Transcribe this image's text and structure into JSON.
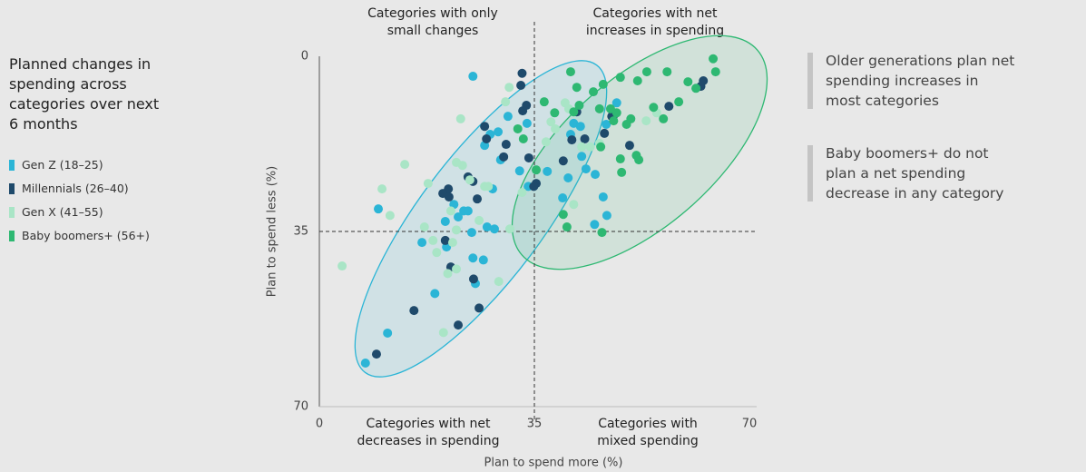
{
  "chart_data": {
    "type": "scatter",
    "title": "Planned changes in spending across categories over next 6 months",
    "xlabel": "Plan to spend more (%)",
    "ylabel": "Plan to spend less (%)",
    "xlim": [
      0,
      70
    ],
    "xticks": [
      0,
      35,
      70
    ],
    "ylim": [
      70,
      0
    ],
    "yticks": [
      0,
      35,
      70
    ],
    "quadrant_labels": [
      "Categories with only small changes",
      "Categories with net increases in spending",
      "Categories with net decreases in spending",
      "Categories with mixed spending"
    ],
    "annotations": [
      "Older generations plan net spending increases in most categories",
      "Baby boomers+ do not plan a net spending decrease in any category"
    ],
    "series": [
      {
        "name": "Gen Z (18–25)",
        "color": "#2bb5d6",
        "x": [
          25.0,
          7.5,
          11.1,
          9.6,
          16.7,
          18.8,
          20.7,
          20.5,
          23.5,
          22.6,
          24.8,
          25.0,
          26.7,
          27.3,
          28.5,
          29.1,
          29.5,
          27.8,
          26.9,
          30.7,
          32.6,
          34.0,
          33.8,
          37.1,
          39.6,
          40.5,
          40.9,
          41.4,
          42.5,
          42.7,
          43.4,
          44.9,
          46.7,
          48.4,
          46.2,
          46.8,
          44.8,
          28.2,
          25.4,
          24.2,
          21.9
        ],
        "y": [
          4.0,
          61.3,
          55.3,
          30.5,
          37.2,
          47.4,
          38.1,
          33.0,
          30.9,
          32.1,
          35.2,
          40.3,
          40.7,
          34.1,
          34.5,
          15.1,
          20.7,
          15.6,
          17.8,
          12.0,
          22.9,
          26.0,
          13.4,
          23.0,
          28.3,
          24.3,
          15.6,
          13.4,
          14.0,
          20.0,
          22.5,
          23.6,
          13.6,
          9.3,
          28.1,
          31.8,
          33.6,
          26.5,
          45.4,
          30.9,
          29.6
        ]
      },
      {
        "name": "Millennials (26–40)",
        "color": "#1f4a6b",
        "x": [
          9.3,
          15.4,
          22.6,
          26.0,
          25.1,
          21.4,
          20.5,
          21.0,
          20.1,
          21.1,
          24.2,
          25.0,
          25.7,
          26.9,
          27.2,
          30.0,
          30.4,
          33.0,
          32.8,
          33.1,
          33.7,
          34.1,
          35.3,
          34.9,
          39.7,
          41.1,
          41.9,
          43.2,
          46.4,
          47.6,
          50.5,
          47.9,
          56.9,
          62.1,
          62.5
        ],
        "y": [
          59.5,
          50.8,
          53.7,
          50.3,
          44.5,
          42.1,
          36.8,
          26.5,
          27.4,
          28.1,
          24.1,
          25.0,
          28.5,
          14.0,
          16.5,
          20.1,
          17.6,
          3.4,
          5.8,
          10.9,
          9.8,
          20.3,
          25.4,
          26.0,
          20.9,
          16.7,
          11.1,
          16.5,
          15.4,
          12.0,
          17.8,
          11.8,
          10.0,
          6.0,
          4.9
        ]
      },
      {
        "name": "Gen X (41–55)",
        "color": "#a9e5c6",
        "x": [
          3.7,
          10.2,
          11.5,
          13.9,
          17.1,
          17.7,
          18.5,
          19.1,
          20.9,
          21.4,
          21.7,
          22.3,
          22.3,
          22.3,
          20.2,
          23.0,
          23.3,
          24.5,
          26.0,
          26.9,
          27.5,
          29.2,
          30.3,
          30.9,
          31.0,
          36.9,
          37.7,
          38.4,
          40.0,
          40.6,
          42.7,
          44.1,
          45.6,
          53.2,
          54.9,
          33.0,
          41.4
        ],
        "y": [
          41.9,
          26.5,
          31.8,
          21.6,
          34.1,
          25.4,
          36.8,
          39.2,
          43.4,
          30.9,
          37.2,
          21.2,
          34.7,
          42.5,
          55.2,
          12.5,
          21.8,
          24.7,
          32.8,
          26.0,
          26.0,
          45.0,
          9.1,
          6.2,
          34.5,
          17.1,
          13.1,
          14.5,
          9.3,
          10.5,
          18.1,
          18.1,
          17.4,
          12.9,
          11.3,
          27.2,
          29.6
        ]
      },
      {
        "name": "Baby boomers+ (56+)",
        "color": "#2eb872",
        "x": [
          32.3,
          33.2,
          35.3,
          36.6,
          38.3,
          39.7,
          40.3,
          40.9,
          41.4,
          41.9,
          42.3,
          44.6,
          45.6,
          45.8,
          46.0,
          46.2,
          47.4,
          47.9,
          48.4,
          49.0,
          49.0,
          49.2,
          50.0,
          50.7,
          51.8,
          51.6,
          52.0,
          53.3,
          54.4,
          56.0,
          56.6,
          58.5,
          60.0,
          61.3,
          64.1,
          64.5
        ],
        "y": [
          14.5,
          16.5,
          22.7,
          9.1,
          11.3,
          31.6,
          34.1,
          3.1,
          11.1,
          6.2,
          9.8,
          7.1,
          10.5,
          18.1,
          35.2,
          5.6,
          10.5,
          12.9,
          11.3,
          4.2,
          20.5,
          23.2,
          13.6,
          12.5,
          4.9,
          19.8,
          20.7,
          3.1,
          10.2,
          12.5,
          3.1,
          9.1,
          5.1,
          6.4,
          0.5,
          3.1
        ]
      }
    ]
  }
}
